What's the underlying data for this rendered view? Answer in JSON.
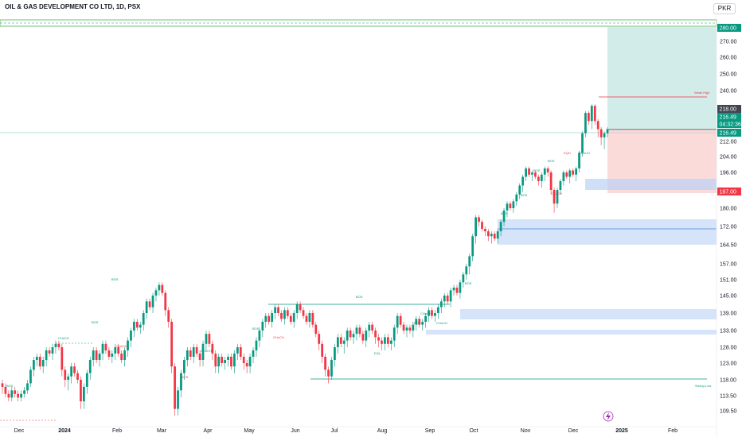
{
  "header": {
    "title": "OIL & GAS DEVELOPMENT CO LTD, 1D, PSX",
    "currency": "PKR"
  },
  "chart_data": {
    "type": "candlestick",
    "ylim": [
      106,
      286
    ],
    "price_ticks": [
      "280.00",
      "270.00",
      "260.00",
      "250.00",
      "240.00",
      "228.00",
      "212.00",
      "204.00",
      "196.00",
      "188.00",
      "180.00",
      "172.00",
      "164.50",
      "157.00",
      "151.00",
      "145.00",
      "139.00",
      "133.00",
      "128.00",
      "123.00",
      "118.00",
      "113.50",
      "109.50"
    ],
    "price_tick_values": [
      280,
      270,
      260,
      250,
      240,
      228,
      212,
      204,
      196,
      188,
      180,
      172,
      164.5,
      157,
      151,
      145,
      139,
      133,
      128,
      123,
      118,
      113.5,
      109.5
    ],
    "x_labels": [
      "Dec",
      "2024",
      "Feb",
      "Mar",
      "Apr",
      "May",
      "Jun",
      "Jul",
      "Aug",
      "Sep",
      "Oct",
      "Nov",
      "Dec",
      "2025",
      "Feb"
    ],
    "badges": [
      {
        "label": "280.00",
        "color": "#089981",
        "value": 280
      },
      {
        "label": "218.00",
        "color": "#434651",
        "value": 218
      },
      {
        "label": "216.49",
        "color": "#089981",
        "value": 216.49
      },
      {
        "label": "04:32:36",
        "color": "#089981",
        "value": 216.49
      },
      {
        "label": "216.49",
        "color": "#089981",
        "value": 216.49
      },
      {
        "label": "187.00",
        "color": "#f23645",
        "value": 187
      }
    ],
    "annotations": [
      "BOS",
      "BOS",
      "CHoCH",
      "BOS",
      "CHoCH",
      "CHoCH",
      "BOS",
      "BOS",
      "BOS",
      "CHoCH",
      "CHoCH",
      "BOS",
      "CHoCH",
      "EQL",
      "BOS",
      "BOS",
      "BOS",
      "BOS",
      "BOS",
      "CHoCH",
      "EQH",
      "CHoCH",
      "Weak High",
      "Strong Low"
    ],
    "colors": {
      "up": "#089981",
      "down": "#f23645"
    },
    "candles": [
      [
        117,
        114,
        116
      ],
      [
        116,
        113,
        114
      ],
      [
        114,
        112,
        113
      ],
      [
        113,
        112,
        115
      ],
      [
        115,
        113,
        114
      ],
      [
        114,
        112,
        113
      ],
      [
        113,
        112,
        114
      ],
      [
        114,
        113,
        115
      ],
      [
        115,
        114,
        117
      ],
      [
        117,
        116,
        121
      ],
      [
        121,
        119,
        124
      ],
      [
        124,
        122,
        125
      ],
      [
        125,
        121,
        122
      ],
      [
        122,
        120,
        124
      ],
      [
        124,
        122,
        127
      ],
      [
        127,
        125,
        126
      ],
      [
        126,
        124,
        128
      ],
      [
        128,
        126,
        129
      ],
      [
        129,
        127,
        128
      ],
      [
        128,
        119,
        121
      ],
      [
        121,
        116,
        118
      ],
      [
        118,
        115,
        119
      ],
      [
        119,
        117,
        122
      ],
      [
        122,
        119,
        120
      ],
      [
        120,
        117,
        118
      ],
      [
        118,
        110,
        112
      ],
      [
        112,
        110,
        116
      ],
      [
        116,
        114,
        120
      ],
      [
        120,
        118,
        124
      ],
      [
        124,
        122,
        127
      ],
      [
        127,
        123,
        124
      ],
      [
        124,
        122,
        126
      ],
      [
        126,
        124,
        129
      ],
      [
        129,
        126,
        127
      ],
      [
        127,
        124,
        125
      ],
      [
        125,
        123,
        126
      ],
      [
        126,
        124,
        128
      ],
      [
        128,
        125,
        126
      ],
      [
        126,
        123,
        124
      ],
      [
        124,
        122,
        127
      ],
      [
        127,
        125,
        130
      ],
      [
        130,
        128,
        133
      ],
      [
        133,
        131,
        136
      ],
      [
        136,
        133,
        134
      ],
      [
        134,
        132,
        135
      ],
      [
        135,
        133,
        139
      ],
      [
        139,
        137,
        143
      ],
      [
        143,
        140,
        141
      ],
      [
        141,
        139,
        145
      ],
      [
        145,
        143,
        147
      ],
      [
        147,
        145,
        149
      ],
      [
        149,
        145,
        146
      ],
      [
        146,
        138,
        140
      ],
      [
        140,
        134,
        136
      ],
      [
        136,
        120,
        122
      ],
      [
        122,
        108,
        110
      ],
      [
        110,
        108,
        115
      ],
      [
        115,
        113,
        120
      ],
      [
        120,
        118,
        124
      ],
      [
        124,
        122,
        127
      ],
      [
        127,
        124,
        125
      ],
      [
        125,
        123,
        128
      ],
      [
        128,
        125,
        126
      ],
      [
        126,
        122,
        124
      ],
      [
        124,
        122,
        129
      ],
      [
        129,
        127,
        132
      ],
      [
        132,
        128,
        129
      ],
      [
        129,
        124,
        126
      ],
      [
        126,
        120,
        122
      ],
      [
        122,
        120,
        125
      ],
      [
        125,
        122,
        123
      ],
      [
        123,
        121,
        124
      ],
      [
        124,
        122,
        125
      ],
      [
        125,
        121,
        122
      ],
      [
        122,
        120,
        126
      ],
      [
        126,
        124,
        128
      ],
      [
        128,
        124,
        125
      ],
      [
        125,
        121,
        123
      ],
      [
        123,
        120,
        122
      ],
      [
        122,
        120,
        125
      ],
      [
        125,
        123,
        127
      ],
      [
        127,
        125,
        130
      ],
      [
        130,
        128,
        133
      ],
      [
        133,
        131,
        136
      ],
      [
        136,
        134,
        138
      ],
      [
        138,
        135,
        136
      ],
      [
        136,
        134,
        139
      ],
      [
        139,
        137,
        141
      ],
      [
        141,
        138,
        139
      ],
      [
        139,
        136,
        137
      ],
      [
        137,
        135,
        140
      ],
      [
        140,
        137,
        138
      ],
      [
        138,
        135,
        136
      ],
      [
        136,
        134,
        139
      ],
      [
        139,
        137,
        142
      ],
      [
        142,
        139,
        140
      ],
      [
        140,
        137,
        138
      ],
      [
        138,
        135,
        136
      ],
      [
        136,
        134,
        139
      ],
      [
        139,
        134,
        135
      ],
      [
        135,
        131,
        132
      ],
      [
        132,
        127,
        129
      ],
      [
        129,
        123,
        125
      ],
      [
        125,
        119,
        121
      ],
      [
        121,
        117,
        119
      ],
      [
        119,
        118,
        124
      ],
      [
        124,
        122,
        128
      ],
      [
        128,
        126,
        131
      ],
      [
        131,
        128,
        129
      ],
      [
        129,
        126,
        130
      ],
      [
        130,
        128,
        133
      ],
      [
        133,
        130,
        131
      ],
      [
        131,
        129,
        132
      ],
      [
        132,
        130,
        134
      ],
      [
        134,
        131,
        132
      ],
      [
        132,
        129,
        130
      ],
      [
        130,
        128,
        133
      ],
      [
        133,
        131,
        135
      ],
      [
        135,
        132,
        133
      ],
      [
        133,
        129,
        131
      ],
      [
        131,
        128,
        130
      ],
      [
        130,
        127,
        129
      ],
      [
        129,
        127,
        131
      ],
      [
        131,
        128,
        129
      ],
      [
        129,
        127,
        130
      ],
      [
        130,
        128,
        134
      ],
      [
        134,
        132,
        138
      ],
      [
        138,
        134,
        135
      ],
      [
        135,
        132,
        133
      ],
      [
        133,
        131,
        134
      ],
      [
        134,
        132,
        133
      ],
      [
        133,
        131,
        135
      ],
      [
        135,
        133,
        137
      ],
      [
        137,
        134,
        135
      ],
      [
        135,
        133,
        136
      ],
      [
        136,
        134,
        138
      ],
      [
        138,
        136,
        140
      ],
      [
        140,
        137,
        138
      ],
      [
        138,
        136,
        139
      ],
      [
        139,
        137,
        141
      ],
      [
        141,
        139,
        143
      ],
      [
        143,
        141,
        145
      ],
      [
        145,
        142,
        143
      ],
      [
        143,
        141,
        147
      ],
      [
        147,
        145,
        148
      ],
      [
        148,
        145,
        146
      ],
      [
        146,
        144,
        150
      ],
      [
        150,
        148,
        153
      ],
      [
        153,
        151,
        156
      ],
      [
        156,
        153,
        160
      ],
      [
        160,
        158,
        168
      ],
      [
        168,
        165,
        176
      ],
      [
        176,
        172,
        174
      ],
      [
        174,
        170,
        171
      ],
      [
        171,
        168,
        170
      ],
      [
        170,
        166,
        168
      ],
      [
        168,
        165,
        169
      ],
      [
        169,
        166,
        167
      ],
      [
        167,
        165,
        170
      ],
      [
        170,
        168,
        174
      ],
      [
        174,
        172,
        179
      ],
      [
        179,
        176,
        182
      ],
      [
        182,
        179,
        180
      ],
      [
        180,
        178,
        183
      ],
      [
        183,
        181,
        186
      ],
      [
        186,
        184,
        190
      ],
      [
        190,
        187,
        194
      ],
      [
        194,
        192,
        198
      ],
      [
        198,
        194,
        195
      ],
      [
        195,
        192,
        196
      ],
      [
        196,
        193,
        194
      ],
      [
        194,
        190,
        192
      ],
      [
        192,
        189,
        195
      ],
      [
        195,
        192,
        198
      ],
      [
        198,
        194,
        196
      ],
      [
        196,
        186,
        188
      ],
      [
        188,
        178,
        182
      ],
      [
        182,
        180,
        188
      ],
      [
        188,
        186,
        192
      ],
      [
        192,
        190,
        196
      ],
      [
        196,
        193,
        194
      ],
      [
        194,
        191,
        197
      ],
      [
        197,
        194,
        195
      ],
      [
        195,
        192,
        198
      ],
      [
        198,
        196,
        206
      ],
      [
        206,
        204,
        216
      ],
      [
        216,
        214,
        226
      ],
      [
        226,
        220,
        222
      ],
      [
        222,
        218,
        230
      ],
      [
        230,
        220,
        222
      ],
      [
        222,
        214,
        218
      ],
      [
        218,
        210,
        214
      ],
      [
        214,
        208,
        216
      ],
      [
        216,
        214,
        218
      ]
    ]
  }
}
